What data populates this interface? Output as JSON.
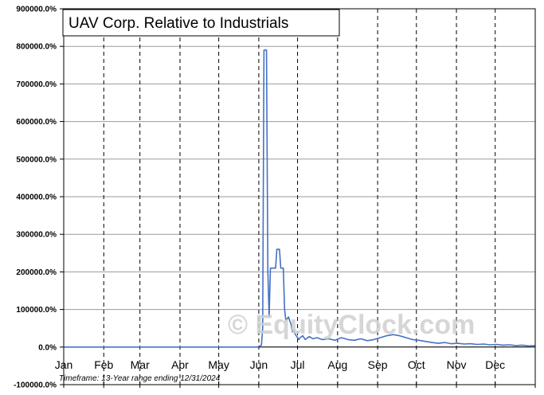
{
  "chart_data": {
    "type": "line",
    "title": "UAV Corp. Relative to Industrials",
    "footnote": "Timeframe: 13-Year range ending 12/31/2024",
    "watermark": "© EquityClock.com",
    "xlabel": "",
    "ylabel": "",
    "ylim": [
      -100000,
      900000
    ],
    "xlim": [
      0,
      365
    ],
    "y_ticks": [
      900000,
      800000,
      700000,
      600000,
      500000,
      400000,
      300000,
      200000,
      100000,
      0,
      -100000
    ],
    "y_tick_labels": [
      "900000.0%",
      "800000.0%",
      "700000.0%",
      "600000.0%",
      "500000.0%",
      "400000.0%",
      "300000.0%",
      "200000.0%",
      "100000.0%",
      "0.0%",
      "-100000.0%"
    ],
    "months": [
      {
        "label": "Jan",
        "day": 0
      },
      {
        "label": "Feb",
        "day": 31
      },
      {
        "label": "Mar",
        "day": 59
      },
      {
        "label": "Apr",
        "day": 90
      },
      {
        "label": "May",
        "day": 120
      },
      {
        "label": "Jun",
        "day": 151
      },
      {
        "label": "Jul",
        "day": 181
      },
      {
        "label": "Aug",
        "day": 212
      },
      {
        "label": "Sep",
        "day": 243
      },
      {
        "label": "Oct",
        "day": 273
      },
      {
        "label": "Nov",
        "day": 304
      },
      {
        "label": "Dec",
        "day": 334
      }
    ],
    "grid": true,
    "series": [
      {
        "color": "#4472c4",
        "points": [
          [
            0,
            0
          ],
          [
            150,
            0
          ],
          [
            153,
            5000
          ],
          [
            154,
            50000
          ],
          [
            155,
            790000
          ],
          [
            157,
            790000
          ],
          [
            158,
            200000
          ],
          [
            159,
            80000
          ],
          [
            160,
            210000
          ],
          [
            164,
            210000
          ],
          [
            165,
            260000
          ],
          [
            167,
            260000
          ],
          [
            168,
            210000
          ],
          [
            170,
            210000
          ],
          [
            171,
            100000
          ],
          [
            172,
            70000
          ],
          [
            174,
            80000
          ],
          [
            175,
            70000
          ],
          [
            176,
            60000
          ],
          [
            177,
            40000
          ],
          [
            178,
            45000
          ],
          [
            179,
            35000
          ],
          [
            180,
            30000
          ],
          [
            181,
            25000
          ],
          [
            182,
            20000
          ],
          [
            183,
            25000
          ],
          [
            185,
            30000
          ],
          [
            187,
            20000
          ],
          [
            190,
            28000
          ],
          [
            193,
            22000
          ],
          [
            196,
            25000
          ],
          [
            200,
            20000
          ],
          [
            205,
            22000
          ],
          [
            210,
            18000
          ],
          [
            215,
            25000
          ],
          [
            220,
            20000
          ],
          [
            225,
            18000
          ],
          [
            230,
            22000
          ],
          [
            235,
            17000
          ],
          [
            240,
            20000
          ],
          [
            245,
            25000
          ],
          [
            250,
            30000
          ],
          [
            255,
            33000
          ],
          [
            260,
            30000
          ],
          [
            265,
            25000
          ],
          [
            270,
            20000
          ],
          [
            275,
            18000
          ],
          [
            280,
            15000
          ],
          [
            285,
            12000
          ],
          [
            290,
            10000
          ],
          [
            295,
            12000
          ],
          [
            300,
            9000
          ],
          [
            305,
            10000
          ],
          [
            310,
            8000
          ],
          [
            315,
            9000
          ],
          [
            320,
            7000
          ],
          [
            325,
            8000
          ],
          [
            330,
            6000
          ],
          [
            335,
            7000
          ],
          [
            340,
            5000
          ],
          [
            345,
            6000
          ],
          [
            350,
            4000
          ],
          [
            355,
            5000
          ],
          [
            360,
            3000
          ],
          [
            365,
            4000
          ]
        ]
      }
    ]
  }
}
